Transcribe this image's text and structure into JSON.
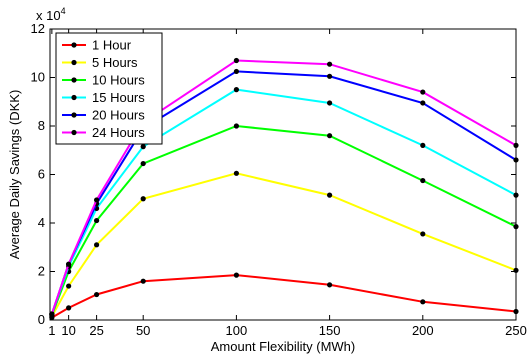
{
  "chart_data": {
    "type": "line",
    "xlabel": "Amount Flexibility (MWh)",
    "ylabel": "Average Daily Savings (DKK)",
    "y_multiplier_label": "x 10",
    "y_multiplier_exponent": "4",
    "x": [
      1,
      10,
      25,
      50,
      100,
      150,
      200,
      250
    ],
    "xlim": [
      0,
      250
    ],
    "ylim": [
      0,
      12
    ],
    "x_ticks": [
      1,
      10,
      25,
      50,
      100,
      150,
      200,
      250
    ],
    "x_tick_labels": [
      "1",
      "10",
      "25",
      "50",
      "100",
      "150",
      "200",
      "250"
    ],
    "y_ticks": [
      0,
      2,
      4,
      6,
      8,
      10,
      12
    ],
    "y_tick_labels": [
      "0",
      "2",
      "4",
      "6",
      "8",
      "10",
      "12"
    ],
    "grid": false,
    "legend_position": "top-left",
    "series": [
      {
        "name": "1 Hour",
        "color": "#ff0000",
        "values": [
          0.1,
          0.5,
          1.05,
          1.6,
          1.85,
          1.45,
          0.75,
          0.35
        ]
      },
      {
        "name": "5 Hours",
        "color": "#ffff00",
        "values": [
          0.15,
          1.4,
          3.1,
          5.0,
          6.05,
          5.15,
          3.55,
          2.05
        ]
      },
      {
        "name": "10 Hours",
        "color": "#00ff00",
        "values": [
          0.2,
          2.0,
          4.1,
          6.45,
          8.0,
          7.6,
          5.75,
          3.85
        ]
      },
      {
        "name": "15 Hours",
        "color": "#00ffff",
        "values": [
          0.25,
          2.2,
          4.6,
          7.15,
          9.5,
          8.95,
          7.2,
          5.15
        ]
      },
      {
        "name": "20 Hours",
        "color": "#0000ff",
        "values": [
          0.25,
          2.3,
          4.8,
          7.9,
          10.25,
          10.05,
          8.95,
          6.6
        ]
      },
      {
        "name": "24 Hours",
        "color": "#ff00ff",
        "values": [
          0.25,
          2.3,
          4.95,
          8.15,
          10.7,
          10.55,
          9.4,
          7.2
        ]
      }
    ]
  }
}
